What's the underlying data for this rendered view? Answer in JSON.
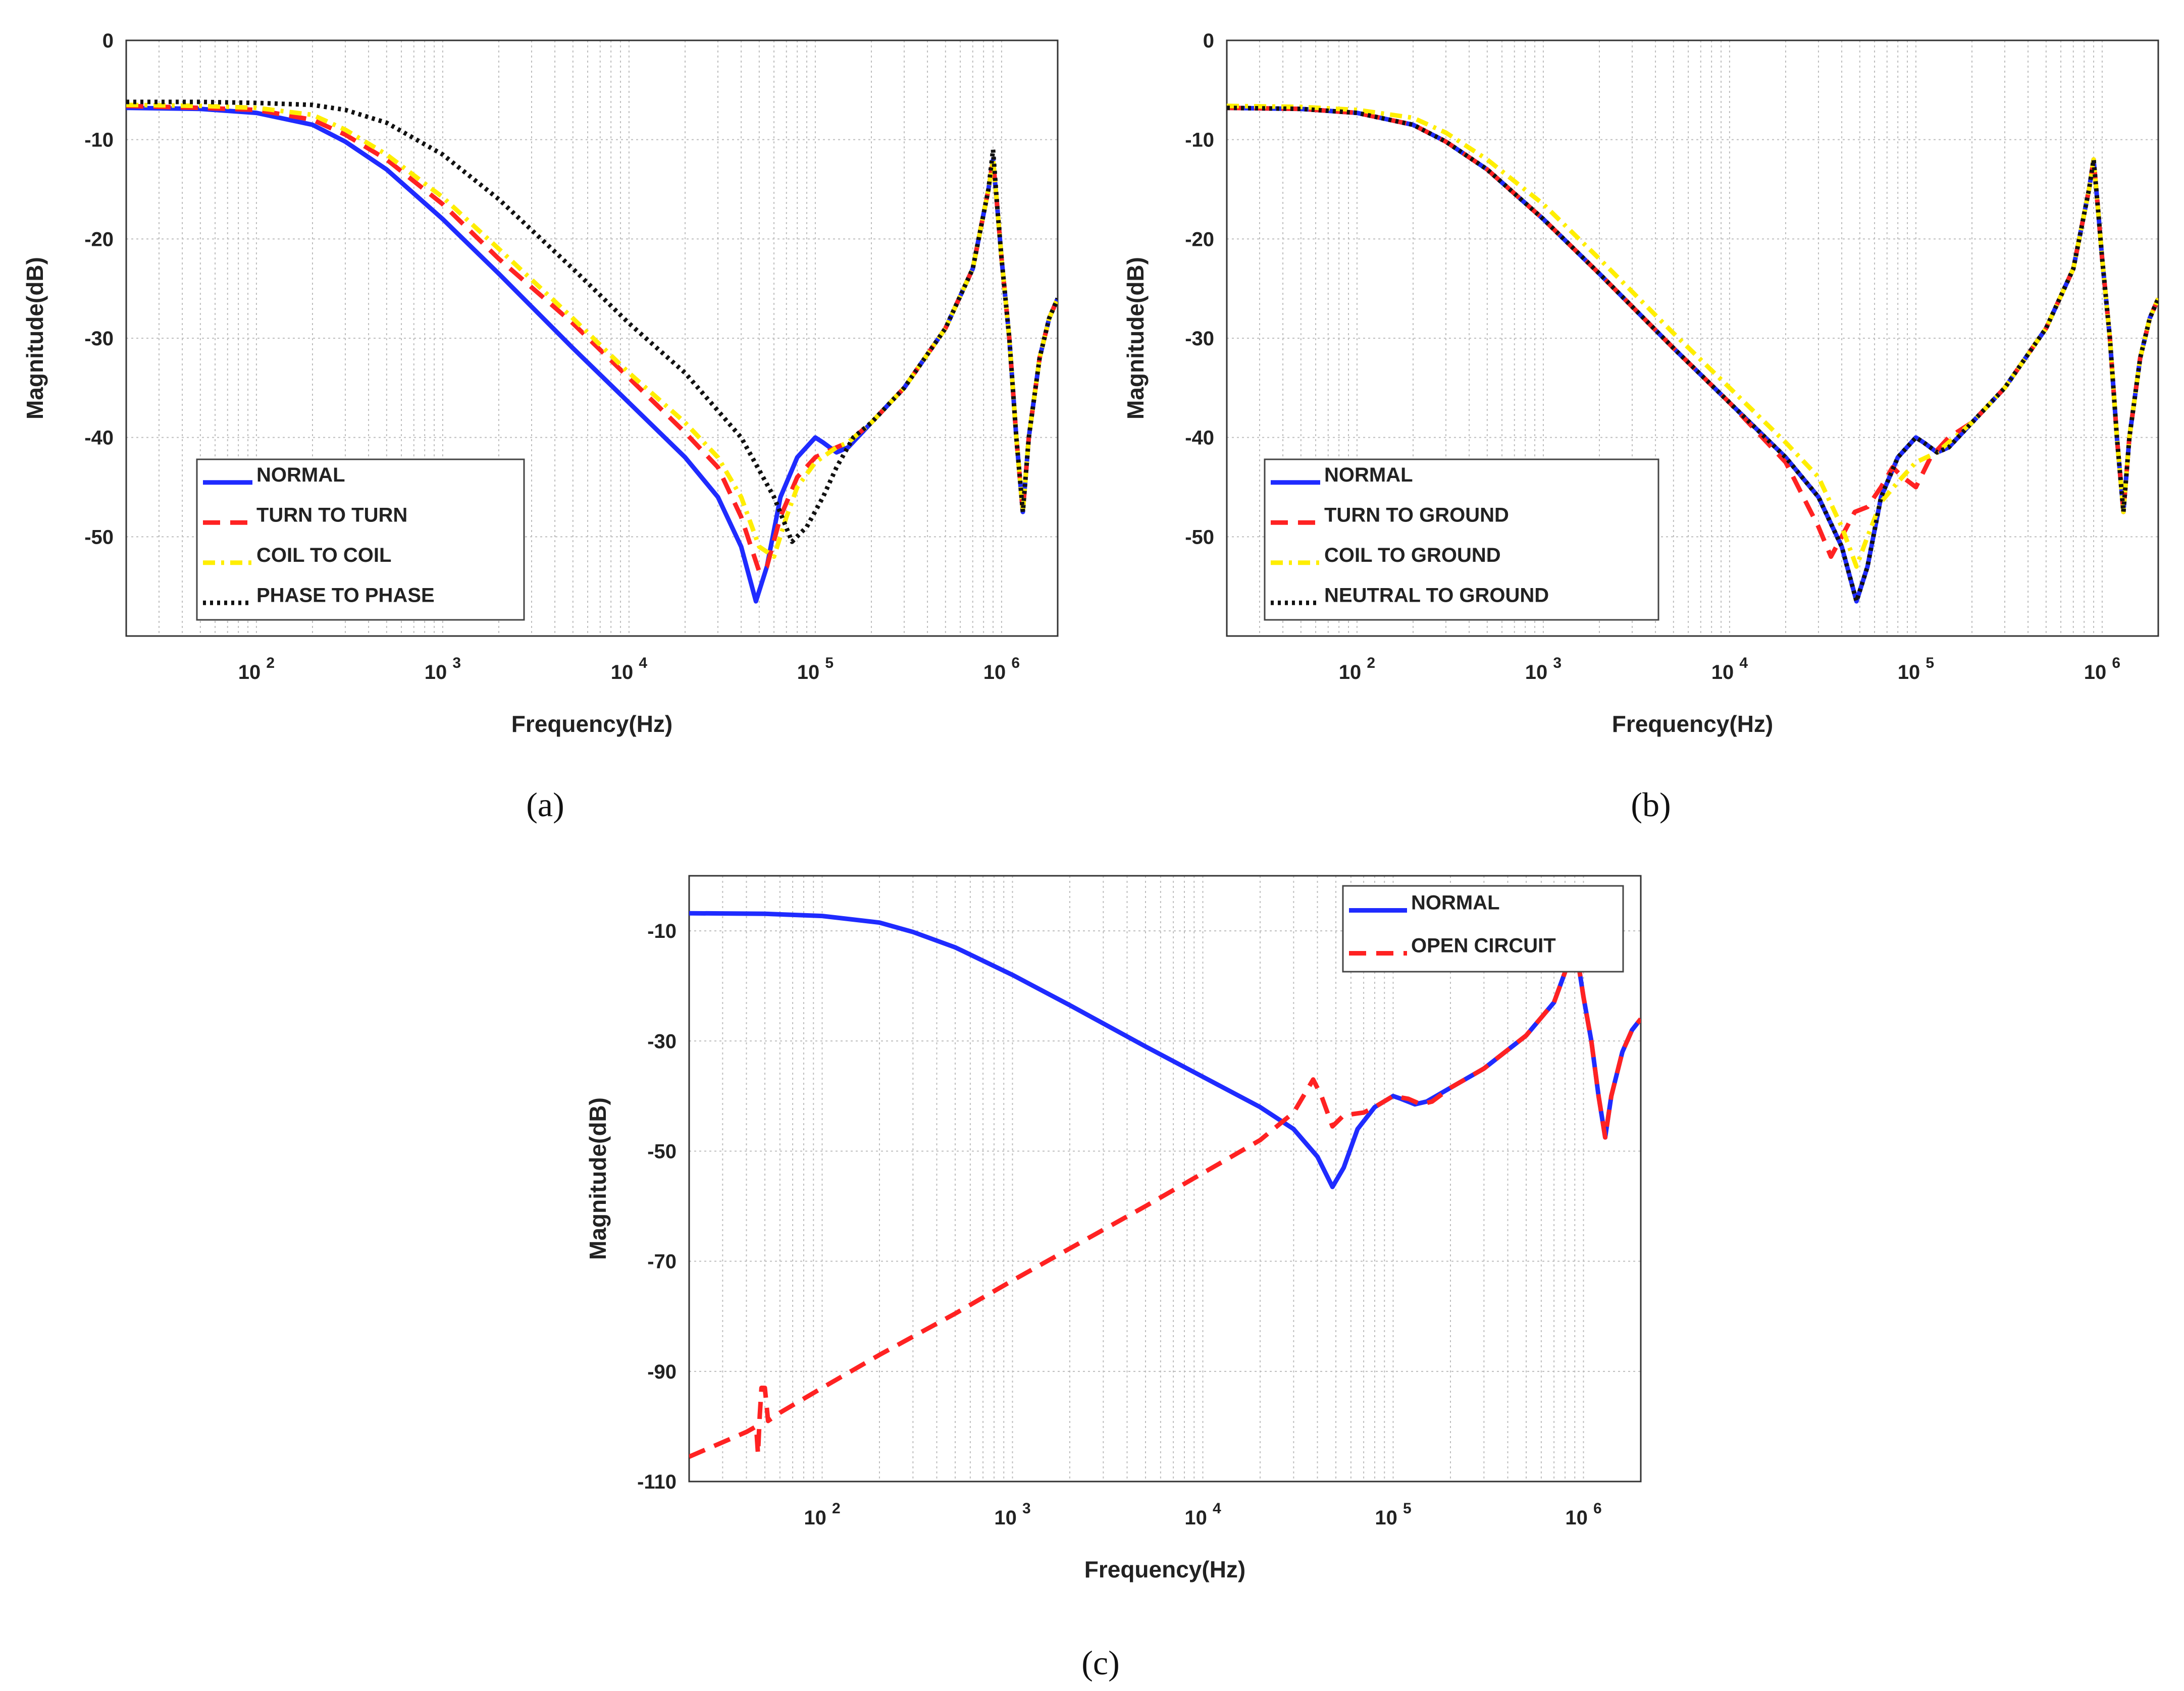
{
  "chart_data": [
    {
      "type": "line",
      "id": "a",
      "panel_label": "(a)",
      "xlabel": "Frequency(Hz)",
      "ylabel": "Magnitude(dB)",
      "xscale": "log",
      "xlim": [
        20,
        2000000
      ],
      "ylim": [
        -60,
        0
      ],
      "yticks": [
        0,
        -10,
        -20,
        -30,
        -40,
        -50
      ],
      "ytick_labels": [
        "0",
        "-10",
        "-20",
        "-30",
        "-40",
        "-50"
      ],
      "xticks": [
        100,
        1000,
        10000,
        100000,
        1000000
      ],
      "xtick_base": "10",
      "xtick_exponents": [
        "2",
        "3",
        "4",
        "5",
        "6"
      ],
      "grid": true,
      "legend_position": "bottom-left",
      "series": [
        {
          "name": "NORMAL",
          "color": "#1f2bff",
          "style": "solid",
          "x": [
            20,
            50,
            100,
            200,
            300,
            500,
            1000,
            2000,
            5000,
            10000,
            20000,
            30000,
            40000,
            48000,
            55000,
            65000,
            80000,
            100000,
            110000,
            130000,
            150000,
            200000,
            300000,
            500000,
            700000,
            850000,
            900000,
            950000,
            1000000,
            1100000,
            1200000,
            1300000,
            1400000,
            1600000,
            1800000,
            2000000
          ],
          "y": [
            -6.8,
            -6.9,
            -7.3,
            -8.5,
            -10.2,
            -13,
            -18,
            -23.5,
            -31,
            -36.5,
            -42,
            -46,
            -51,
            -56.5,
            -53,
            -46,
            -42,
            -40,
            -40.5,
            -41.5,
            -41,
            -38.5,
            -35,
            -29,
            -23,
            -15,
            -12,
            -17,
            -22,
            -30,
            -40,
            -47.5,
            -40,
            -32,
            -28,
            -26
          ]
        },
        {
          "name": "TURN TO TURN",
          "color": "#ff2222",
          "style": "dashed",
          "x": [
            20,
            50,
            100,
            200,
            300,
            500,
            1000,
            2000,
            5000,
            10000,
            20000,
            30000,
            40000,
            50000,
            55000,
            65000,
            80000,
            100000,
            130000,
            150000,
            200000,
            300000,
            500000,
            700000,
            850000,
            900000,
            950000,
            1000000,
            1100000,
            1200000,
            1300000,
            1400000,
            1600000,
            1800000,
            2000000
          ],
          "y": [
            -6.6,
            -6.8,
            -7,
            -8,
            -9.5,
            -12,
            -16.5,
            -22,
            -28.5,
            -34,
            -39.5,
            -43,
            -48,
            -53.5,
            -53,
            -48,
            -44,
            -42,
            -41,
            -40.5,
            -38.5,
            -35,
            -29,
            -23,
            -15,
            -12,
            -17,
            -22,
            -30,
            -40,
            -47.5,
            -40,
            -32,
            -28,
            -26
          ]
        },
        {
          "name": "COIL TO COIL",
          "color": "#ffee00",
          "style": "dashdot",
          "x": [
            20,
            50,
            100,
            200,
            300,
            500,
            1000,
            2000,
            5000,
            10000,
            20000,
            30000,
            40000,
            50000,
            60000,
            70000,
            80000,
            100000,
            130000,
            150000,
            200000,
            300000,
            500000,
            700000,
            850000,
            900000,
            950000,
            1000000,
            1100000,
            1200000,
            1300000,
            1400000,
            1600000,
            1800000,
            2000000
          ],
          "y": [
            -6.5,
            -6.6,
            -6.8,
            -7.5,
            -9,
            -11.5,
            -15.8,
            -21,
            -28,
            -33.5,
            -38.5,
            -42,
            -46,
            -51,
            -52,
            -48,
            -45,
            -42.5,
            -41,
            -40.5,
            -38.5,
            -35,
            -29,
            -23,
            -15,
            -12,
            -17,
            -22,
            -30,
            -40,
            -47.5,
            -40,
            -32,
            -28,
            -26
          ]
        },
        {
          "name": "PHASE TO PHASE",
          "color": "#111111",
          "style": "dotted",
          "x": [
            20,
            50,
            100,
            200,
            300,
            500,
            1000,
            2000,
            5000,
            10000,
            20000,
            40000,
            60000,
            75000,
            90000,
            110000,
            130000,
            160000,
            200000,
            300000,
            500000,
            700000,
            850000,
            900000,
            950000,
            1000000,
            1100000,
            1200000,
            1300000,
            1400000,
            1600000,
            1800000,
            2000000
          ],
          "y": [
            -6.2,
            -6.2,
            -6.3,
            -6.5,
            -7,
            -8.3,
            -11.5,
            -16,
            -23,
            -28.5,
            -33.5,
            -40,
            -46,
            -50.5,
            -49,
            -46,
            -43,
            -40,
            -38.5,
            -35,
            -29,
            -23,
            -15,
            -11,
            -17,
            -22,
            -30,
            -40,
            -47.5,
            -40,
            -32,
            -28,
            -26
          ]
        }
      ]
    },
    {
      "type": "line",
      "id": "b",
      "panel_label": "(b)",
      "xlabel": "Frequency(Hz)",
      "ylabel": "Magnitude(dB)",
      "xscale": "log",
      "xlim": [
        20,
        2000000
      ],
      "ylim": [
        -60,
        0
      ],
      "yticks": [
        0,
        -10,
        -20,
        -30,
        -40,
        -50
      ],
      "ytick_labels": [
        "0",
        "-10",
        "-20",
        "-30",
        "-40",
        "-50"
      ],
      "xticks": [
        100,
        1000,
        10000,
        100000,
        1000000
      ],
      "xtick_base": "10",
      "xtick_exponents": [
        "2",
        "3",
        "4",
        "5",
        "6"
      ],
      "grid": true,
      "legend_position": "bottom-left",
      "series": [
        {
          "name": "NORMAL",
          "color": "#1f2bff",
          "style": "solid",
          "x": [
            20,
            50,
            100,
            200,
            300,
            500,
            1000,
            2000,
            5000,
            10000,
            20000,
            30000,
            40000,
            48000,
            55000,
            65000,
            80000,
            100000,
            110000,
            130000,
            150000,
            200000,
            300000,
            500000,
            700000,
            850000,
            900000,
            950000,
            1000000,
            1100000,
            1200000,
            1300000,
            1400000,
            1600000,
            1800000,
            2000000
          ],
          "y": [
            -6.8,
            -6.9,
            -7.3,
            -8.5,
            -10.2,
            -13,
            -18,
            -23.5,
            -31,
            -36.5,
            -42,
            -46,
            -51,
            -56.5,
            -53,
            -46,
            -42,
            -40,
            -40.5,
            -41.5,
            -41,
            -38.5,
            -35,
            -29,
            -23,
            -15,
            -12,
            -17,
            -22,
            -30,
            -40,
            -47.5,
            -40,
            -32,
            -28,
            -26
          ]
        },
        {
          "name": "TURN TO GROUND",
          "color": "#ff2222",
          "style": "dashed",
          "x": [
            20,
            50,
            100,
            200,
            300,
            500,
            1000,
            2000,
            5000,
            10000,
            20000,
            30000,
            35000,
            40000,
            47000,
            55000,
            65000,
            75000,
            85000,
            100000,
            120000,
            150000,
            200000,
            300000,
            500000,
            700000,
            850000,
            900000,
            950000,
            1000000,
            1100000,
            1200000,
            1300000,
            1400000,
            1600000,
            1800000,
            2000000
          ],
          "y": [
            -6.8,
            -6.9,
            -7.3,
            -8.5,
            -10.2,
            -13,
            -18,
            -23.5,
            -31,
            -36.5,
            -42.5,
            -49,
            -52,
            -50,
            -47.5,
            -47,
            -45,
            -43,
            -44,
            -45,
            -42,
            -40,
            -38.5,
            -35,
            -29,
            -23,
            -15,
            -12,
            -17,
            -22,
            -30,
            -40,
            -47.5,
            -40,
            -32,
            -28,
            -26
          ]
        },
        {
          "name": "COIL TO GROUND",
          "color": "#ffee00",
          "style": "dashdot",
          "x": [
            20,
            50,
            100,
            200,
            300,
            500,
            1000,
            2000,
            5000,
            10000,
            20000,
            30000,
            40000,
            48000,
            55000,
            65000,
            80000,
            100000,
            130000,
            150000,
            200000,
            300000,
            500000,
            700000,
            850000,
            900000,
            950000,
            1000000,
            1100000,
            1200000,
            1300000,
            1400000,
            1600000,
            1800000,
            2000000
          ],
          "y": [
            -6.6,
            -6.7,
            -7,
            -7.8,
            -9.3,
            -12,
            -16.5,
            -22,
            -29.5,
            -35,
            -40.5,
            -44,
            -49,
            -53,
            -50,
            -46.5,
            -44.5,
            -42.5,
            -41.5,
            -40.5,
            -38.5,
            -35,
            -29,
            -23,
            -15,
            -12,
            -17,
            -22,
            -30,
            -40,
            -47.5,
            -40,
            -32,
            -28,
            -26
          ]
        },
        {
          "name": "NEUTRAL TO GROUND",
          "color": "#111111",
          "style": "dotted",
          "x": [
            20,
            50,
            100,
            200,
            300,
            500,
            1000,
            2000,
            5000,
            10000,
            20000,
            30000,
            40000,
            48000,
            55000,
            65000,
            80000,
            100000,
            110000,
            130000,
            150000,
            200000,
            300000,
            500000,
            700000,
            850000,
            900000,
            950000,
            1000000,
            1100000,
            1200000,
            1300000,
            1400000,
            1600000,
            1800000,
            2000000
          ],
          "y": [
            -6.8,
            -6.9,
            -7.3,
            -8.5,
            -10.2,
            -13,
            -18,
            -23.5,
            -31,
            -36.5,
            -42,
            -46,
            -51,
            -56.5,
            -53,
            -46,
            -42,
            -40,
            -40.5,
            -41.5,
            -41,
            -38.5,
            -35,
            -29,
            -23,
            -15,
            -12,
            -17,
            -22,
            -30,
            -40,
            -47.5,
            -40,
            -32,
            -28,
            -26
          ]
        }
      ]
    },
    {
      "type": "line",
      "id": "c",
      "panel_label": "(c)",
      "xlabel": "Frequency(Hz)",
      "ylabel": "Magnitude(dB)",
      "xscale": "log",
      "xlim": [
        20,
        2000000
      ],
      "ylim": [
        -110,
        0
      ],
      "yticks": [
        -10,
        -30,
        -50,
        -70,
        -90,
        -110
      ],
      "ytick_labels": [
        "-10",
        "-30",
        "-50",
        "-70",
        "-90",
        "-110"
      ],
      "xticks": [
        100,
        1000,
        10000,
        100000,
        1000000
      ],
      "xtick_base": "10",
      "xtick_exponents": [
        "2",
        "3",
        "4",
        "5",
        "6"
      ],
      "grid": true,
      "legend_position": "top-right",
      "series": [
        {
          "name": "NORMAL",
          "color": "#1f2bff",
          "style": "solid",
          "x": [
            20,
            50,
            100,
            200,
            300,
            500,
            1000,
            2000,
            5000,
            10000,
            20000,
            30000,
            40000,
            48000,
            55000,
            65000,
            80000,
            100000,
            110000,
            130000,
            150000,
            200000,
            300000,
            500000,
            700000,
            850000,
            900000,
            950000,
            1000000,
            1100000,
            1200000,
            1300000,
            1400000,
            1600000,
            1800000,
            2000000
          ],
          "y": [
            -6.8,
            -6.9,
            -7.3,
            -8.5,
            -10.2,
            -13,
            -18,
            -23.5,
            -31,
            -36.5,
            -42,
            -46,
            -51,
            -56.5,
            -53,
            -46,
            -42,
            -40,
            -40.5,
            -41.5,
            -41,
            -38.5,
            -35,
            -29,
            -23,
            -15,
            -12,
            -17,
            -22,
            -30,
            -40,
            -47.5,
            -40,
            -32,
            -28,
            -26
          ]
        },
        {
          "name": "OPEN CIRCUIT",
          "color": "#ff2222",
          "style": "dashed",
          "x": [
            20,
            40,
            45,
            46,
            47,
            48,
            50,
            52,
            60,
            100,
            200,
            500,
            1000,
            5000,
            10000,
            20000,
            30000,
            38000,
            42000,
            48000,
            55000,
            70000,
            80000,
            100000,
            120000,
            140000,
            160000,
            200000,
            300000,
            500000,
            700000,
            850000,
            900000,
            950000,
            1000000,
            1100000,
            1200000,
            1300000,
            1400000,
            1600000,
            1800000,
            2000000
          ],
          "y": [
            -105.5,
            -101,
            -100,
            -105,
            -98,
            -93,
            -93,
            -99,
            -97.5,
            -93,
            -87,
            -79.5,
            -73.5,
            -60,
            -54,
            -48,
            -43,
            -37,
            -40,
            -45.5,
            -43.5,
            -43,
            -42,
            -40,
            -40.5,
            -41.5,
            -41,
            -38.5,
            -35,
            -29,
            -23,
            -15,
            -12,
            -17,
            -22,
            -30,
            -40,
            -47.5,
            -40,
            -32,
            -28,
            -26
          ]
        }
      ]
    }
  ]
}
